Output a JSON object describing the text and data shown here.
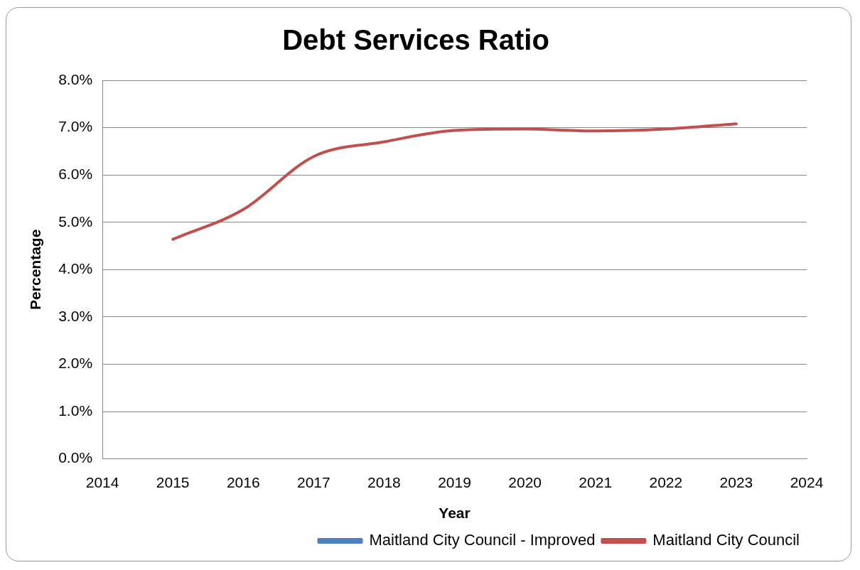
{
  "chart_data": {
    "type": "line",
    "title": "Debt Services Ratio",
    "xlabel": "Year",
    "ylabel": "Percentage",
    "x": [
      2015,
      2016,
      2017,
      2018,
      2019,
      2020,
      2021,
      2022,
      2023
    ],
    "series": [
      {
        "name": "Maitland City Council - Improved",
        "color": "#4f81bd",
        "values": [
          null,
          null,
          null,
          null,
          null,
          null,
          null,
          null,
          null
        ]
      },
      {
        "name": "Maitland City Council",
        "color": "#c0504d",
        "values": [
          4.64,
          5.27,
          6.39,
          6.7,
          6.94,
          6.97,
          6.93,
          6.97,
          7.08
        ]
      }
    ],
    "xlim": [
      2014,
      2024
    ],
    "xticks": [
      2014,
      2015,
      2016,
      2017,
      2018,
      2019,
      2020,
      2021,
      2022,
      2023,
      2024
    ],
    "ylim": [
      0,
      8
    ],
    "yticks": [
      {
        "value": 0,
        "label": "0.0%"
      },
      {
        "value": 1,
        "label": "1.0%"
      },
      {
        "value": 2,
        "label": "2.0%"
      },
      {
        "value": 3,
        "label": "3.0%"
      },
      {
        "value": 4,
        "label": "4.0%"
      },
      {
        "value": 5,
        "label": "5.0%"
      },
      {
        "value": 6,
        "label": "6.0%"
      },
      {
        "value": 7,
        "label": "7.0%"
      },
      {
        "value": 8,
        "label": "8.0%"
      }
    ],
    "grid": "y",
    "legend": "bottom right",
    "marker": "none",
    "line_style": "solid"
  }
}
